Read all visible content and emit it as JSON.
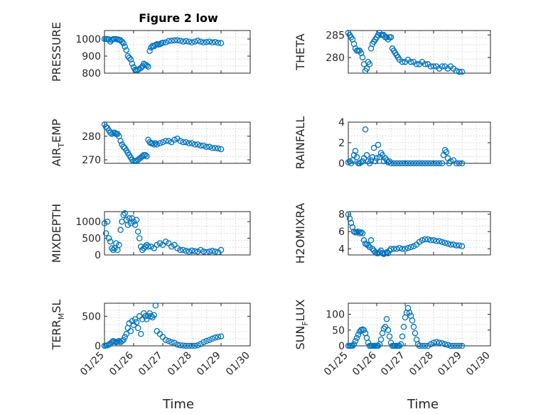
{
  "figure": {
    "title": "Figure 2 low",
    "xlabel": "Time",
    "x_ticks": [
      "01/25",
      "01/26",
      "01/27",
      "01/28",
      "01/29",
      "01/30"
    ]
  },
  "colors": {
    "marker": "#0072BD",
    "axes": "#262626",
    "grid": "#c8c8c8"
  },
  "chart_data": [
    {
      "type": "scatter",
      "name": "pressure",
      "ylabel": "PRESSURE",
      "ylabel_sub": "",
      "ylim": [
        800,
        1050
      ],
      "yticks": [
        800,
        900,
        1000
      ],
      "xlim": [
        0,
        4.8
      ],
      "x": [
        0,
        0.05,
        0.1,
        0.15,
        0.2,
        0.25,
        0.3,
        0.35,
        0.4,
        0.45,
        0.5,
        0.55,
        0.6,
        0.65,
        0.7,
        0.75,
        0.8,
        0.85,
        0.9,
        0.95,
        1.0,
        1.05,
        1.1,
        1.15,
        1.2,
        1.25,
        1.3,
        1.35,
        1.4,
        1.45,
        1.5,
        1.55,
        1.6,
        1.65,
        1.7,
        1.75,
        1.8,
        1.85,
        1.9,
        1.95,
        2.0,
        2.1,
        2.2,
        2.3,
        2.4,
        2.5,
        2.6,
        2.7,
        2.8,
        2.9,
        3.0,
        3.1,
        3.2,
        3.3,
        3.4,
        3.5,
        3.6,
        3.7,
        3.8,
        3.9,
        4.0
      ],
      "y": [
        1000,
        1000,
        1000,
        998,
        985,
        995,
        1000,
        1000,
        1000,
        998,
        996,
        993,
        985,
        975,
        955,
        935,
        900,
        890,
        880,
        855,
        835,
        820,
        818,
        820,
        825,
        830,
        840,
        855,
        850,
        845,
        838,
        930,
        950,
        960,
        958,
        965,
        970,
        968,
        970,
        975,
        978,
        980,
        988,
        990,
        992,
        993,
        990,
        985,
        988,
        985,
        980,
        985,
        990,
        985,
        980,
        982,
        985,
        980,
        982,
        978,
        976
      ]
    },
    {
      "type": "scatter",
      "name": "theta",
      "ylabel": "THETA",
      "ylabel_sub": "",
      "ylim": [
        276.5,
        286
      ],
      "yticks": [
        280,
        285
      ],
      "xlim": [
        0,
        4.8
      ],
      "x": [
        0,
        0.05,
        0.1,
        0.15,
        0.2,
        0.25,
        0.3,
        0.35,
        0.4,
        0.45,
        0.5,
        0.55,
        0.6,
        0.65,
        0.7,
        0.75,
        0.8,
        0.85,
        0.9,
        0.95,
        1.0,
        1.05,
        1.1,
        1.15,
        1.2,
        1.25,
        1.3,
        1.35,
        1.4,
        1.45,
        1.5,
        1.55,
        1.6,
        1.65,
        1.7,
        1.75,
        1.8,
        1.9,
        2.0,
        2.1,
        2.2,
        2.3,
        2.4,
        2.5,
        2.6,
        2.7,
        2.8,
        2.9,
        3.0,
        3.1,
        3.2,
        3.3,
        3.4,
        3.5,
        3.6,
        3.7,
        3.8,
        3.9,
        4.0
      ],
      "y": [
        285.5,
        285,
        284.5,
        284,
        283,
        282,
        281.5,
        281.5,
        281.5,
        281,
        280,
        278.5,
        277,
        277.5,
        279,
        278.5,
        282,
        283,
        283.5,
        284,
        284.5,
        285,
        285.5,
        285,
        285,
        285,
        284.5,
        284.5,
        284,
        284.5,
        284.5,
        282,
        281.5,
        281,
        280.5,
        280,
        279.5,
        279,
        279,
        279.5,
        279,
        279,
        278.5,
        278.5,
        279,
        278.5,
        278.5,
        278,
        278,
        278,
        277.5,
        278,
        278,
        277.5,
        278,
        277.5,
        277,
        276.8,
        276.8
      ]
    },
    {
      "type": "scatter",
      "name": "air_temp",
      "ylabel": "AIR",
      "ylabel_sub": "T",
      "ylabel_suffix": "EMP",
      "ylim": [
        268.5,
        286
      ],
      "yticks": [
        270,
        280
      ],
      "xlim": [
        0,
        4.8
      ],
      "x": [
        0,
        0.05,
        0.1,
        0.15,
        0.2,
        0.25,
        0.3,
        0.35,
        0.4,
        0.45,
        0.5,
        0.55,
        0.6,
        0.65,
        0.7,
        0.75,
        0.8,
        0.85,
        0.9,
        0.95,
        1.0,
        1.05,
        1.1,
        1.15,
        1.2,
        1.25,
        1.3,
        1.35,
        1.4,
        1.45,
        1.5,
        1.55,
        1.6,
        1.65,
        1.7,
        1.75,
        1.8,
        1.9,
        2.0,
        2.1,
        2.2,
        2.3,
        2.4,
        2.5,
        2.6,
        2.7,
        2.8,
        2.9,
        3.0,
        3.1,
        3.2,
        3.3,
        3.4,
        3.5,
        3.6,
        3.7,
        3.8,
        3.9,
        4.0
      ],
      "y": [
        285,
        284,
        283.5,
        282.5,
        281.5,
        281,
        281.5,
        281.5,
        281,
        281,
        280,
        278,
        276.5,
        275.5,
        275,
        274,
        273,
        272,
        271,
        270,
        269.5,
        269.5,
        269.5,
        270,
        270.5,
        271,
        271.5,
        272,
        272,
        271.5,
        278.5,
        277.5,
        277,
        277,
        276.5,
        277,
        276.5,
        277,
        277.5,
        278,
        278,
        277.5,
        278.5,
        279,
        278,
        277.5,
        277.5,
        277,
        277,
        276.5,
        276.5,
        276,
        276,
        275.5,
        275.5,
        275,
        275,
        274.8,
        274.5
      ]
    },
    {
      "type": "scatter",
      "name": "rainfall",
      "ylabel": "RAINFALL",
      "ylabel_sub": "",
      "ylim": [
        0,
        4
      ],
      "yticks": [
        0,
        2,
        4
      ],
      "xlim": [
        0,
        4.8
      ],
      "x": [
        0,
        0.05,
        0.1,
        0.15,
        0.2,
        0.25,
        0.3,
        0.35,
        0.4,
        0.45,
        0.5,
        0.55,
        0.6,
        0.65,
        0.7,
        0.75,
        0.8,
        0.85,
        0.9,
        0.95,
        1.0,
        1.05,
        1.1,
        1.15,
        1.2,
        1.25,
        1.3,
        1.35,
        1.4,
        1.45,
        1.5,
        1.6,
        1.7,
        1.8,
        1.9,
        2.0,
        2.1,
        2.2,
        2.3,
        2.4,
        2.5,
        2.6,
        2.7,
        2.8,
        2.9,
        3.0,
        3.1,
        3.2,
        3.3,
        3.35,
        3.4,
        3.45,
        3.5,
        3.55,
        3.6,
        3.7,
        3.8,
        3.9,
        4.0
      ],
      "y": [
        0.1,
        0.2,
        0,
        0.3,
        0.8,
        1.2,
        0.6,
        0,
        0,
        0.1,
        0.2,
        0.5,
        3.3,
        0.8,
        0.2,
        0,
        0.3,
        0.6,
        1.5,
        0.2,
        0.5,
        1.8,
        0.6,
        1,
        0.8,
        0.2,
        0.5,
        0.3,
        0.1,
        0.2,
        0,
        0,
        0,
        0,
        0,
        0,
        0,
        0,
        0,
        0,
        0,
        0,
        0,
        0,
        0,
        0,
        0,
        0,
        0,
        0.8,
        1.3,
        1.1,
        0.5,
        0,
        0.2,
        0.3,
        0,
        0,
        0
      ]
    },
    {
      "type": "scatter",
      "name": "mixdepth",
      "ylabel": "MIXDEPTH",
      "ylabel_sub": "",
      "ylim": [
        0,
        1300
      ],
      "yticks": [
        0,
        500,
        1000
      ],
      "xlim": [
        0,
        4.8
      ],
      "x": [
        0,
        0.05,
        0.1,
        0.15,
        0.2,
        0.25,
        0.3,
        0.35,
        0.4,
        0.45,
        0.5,
        0.55,
        0.6,
        0.65,
        0.7,
        0.75,
        0.8,
        0.85,
        0.9,
        0.95,
        1.0,
        1.05,
        1.1,
        1.15,
        1.2,
        1.25,
        1.3,
        1.35,
        1.4,
        1.45,
        1.5,
        1.6,
        1.7,
        1.8,
        1.9,
        2.0,
        2.1,
        2.2,
        2.3,
        2.4,
        2.5,
        2.6,
        2.7,
        2.8,
        2.9,
        3.0,
        3.1,
        3.2,
        3.3,
        3.4,
        3.5,
        3.6,
        3.7,
        3.8,
        3.9,
        4.0
      ],
      "y": [
        950,
        650,
        1000,
        500,
        400,
        200,
        150,
        200,
        350,
        150,
        300,
        750,
        1000,
        1200,
        1250,
        1050,
        900,
        1100,
        950,
        1100,
        1000,
        900,
        1050,
        700,
        500,
        250,
        150,
        200,
        250,
        300,
        250,
        250,
        200,
        300,
        350,
        300,
        400,
        350,
        250,
        300,
        200,
        150,
        150,
        120,
        100,
        130,
        110,
        100,
        150,
        100,
        80,
        100,
        120,
        100,
        80,
        150
      ]
    },
    {
      "type": "scatter",
      "name": "h2omixra",
      "ylabel": "H2OMIXRA",
      "ylabel_sub": "",
      "ylim": [
        3.3,
        8.3
      ],
      "yticks": [
        4,
        6,
        8
      ],
      "xlim": [
        0,
        4.8
      ],
      "x": [
        0,
        0.05,
        0.1,
        0.15,
        0.2,
        0.25,
        0.3,
        0.35,
        0.4,
        0.45,
        0.5,
        0.55,
        0.6,
        0.65,
        0.7,
        0.75,
        0.8,
        0.85,
        0.9,
        0.95,
        1.0,
        1.05,
        1.1,
        1.15,
        1.2,
        1.25,
        1.3,
        1.35,
        1.4,
        1.45,
        1.5,
        1.6,
        1.7,
        1.8,
        1.9,
        2.0,
        2.1,
        2.2,
        2.3,
        2.4,
        2.5,
        2.6,
        2.7,
        2.8,
        2.9,
        3.0,
        3.1,
        3.2,
        3.3,
        3.4,
        3.5,
        3.6,
        3.7,
        3.8,
        3.9,
        4.0
      ],
      "y": [
        8,
        7.5,
        7,
        6.5,
        6,
        5.9,
        5.9,
        6,
        5.8,
        5.9,
        5.8,
        5,
        4.6,
        4.5,
        4.4,
        4.2,
        5,
        4,
        3.8,
        3.6,
        3.5,
        3.5,
        3.6,
        3.8,
        3.5,
        3.4,
        3.5,
        3.6,
        3.5,
        3.8,
        4,
        4,
        4,
        4.1,
        4,
        4,
        4.1,
        4.2,
        4.3,
        4.5,
        4.8,
        5,
        5.1,
        5.1,
        5,
        5,
        4.9,
        4.9,
        4.8,
        4.7,
        4.6,
        4.5,
        4.5,
        4.4,
        4.4,
        4.3
      ]
    },
    {
      "type": "scatter",
      "name": "terr_msl",
      "ylabel": "TERR",
      "ylabel_sub": "M",
      "ylabel_suffix": "SL",
      "ylim": [
        0,
        720
      ],
      "yticks": [
        0,
        500
      ],
      "xlim": [
        0,
        5
      ],
      "x": [
        0,
        0.05,
        0.1,
        0.15,
        0.2,
        0.25,
        0.3,
        0.35,
        0.4,
        0.45,
        0.5,
        0.55,
        0.6,
        0.65,
        0.7,
        0.75,
        0.8,
        0.85,
        0.9,
        0.95,
        1.0,
        1.05,
        1.1,
        1.15,
        1.2,
        1.25,
        1.3,
        1.35,
        1.4,
        1.45,
        1.5,
        1.55,
        1.6,
        1.65,
        1.7,
        1.75,
        1.8,
        1.9,
        2.0,
        2.1,
        2.2,
        2.3,
        2.4,
        2.5,
        2.6,
        2.7,
        2.8,
        2.9,
        3.0,
        3.1,
        3.2,
        3.3,
        3.4,
        3.5,
        3.6,
        3.7,
        3.8,
        3.9,
        4.0
      ],
      "y": [
        0,
        5,
        10,
        20,
        40,
        60,
        80,
        70,
        60,
        70,
        80,
        60,
        80,
        100,
        150,
        200,
        300,
        380,
        250,
        420,
        350,
        450,
        400,
        300,
        500,
        200,
        450,
        550,
        500,
        450,
        500,
        550,
        500,
        480,
        520,
        680,
        250,
        200,
        150,
        100,
        80,
        60,
        50,
        20,
        10,
        5,
        0,
        0,
        0,
        0,
        10,
        30,
        60,
        80,
        100,
        120,
        140,
        150,
        160
      ]
    },
    {
      "type": "scatter",
      "name": "sun_flux",
      "ylabel": "SUN",
      "ylabel_sub": "F",
      "ylabel_suffix": "LUX",
      "ylim": [
        0,
        135
      ],
      "yticks": [
        0,
        50,
        100
      ],
      "xlim": [
        0,
        5
      ],
      "x": [
        0,
        0.05,
        0.1,
        0.15,
        0.2,
        0.25,
        0.3,
        0.35,
        0.4,
        0.45,
        0.5,
        0.55,
        0.6,
        0.65,
        0.7,
        0.75,
        0.8,
        0.85,
        0.9,
        0.95,
        1.0,
        1.05,
        1.1,
        1.15,
        1.2,
        1.25,
        1.3,
        1.35,
        1.4,
        1.45,
        1.5,
        1.55,
        1.6,
        1.65,
        1.7,
        1.75,
        1.8,
        1.85,
        1.9,
        1.95,
        2.0,
        2.05,
        2.1,
        2.15,
        2.2,
        2.25,
        2.3,
        2.35,
        2.4,
        2.45,
        2.5,
        2.6,
        2.7,
        2.8,
        2.9,
        3.0,
        3.1,
        3.2,
        3.3,
        3.4,
        3.5,
        3.6,
        3.7,
        3.8,
        3.9,
        4.0
      ],
      "y": [
        0,
        0,
        0,
        0,
        5,
        15,
        25,
        35,
        45,
        50,
        52,
        50,
        40,
        25,
        10,
        0,
        0,
        0,
        0,
        0,
        0,
        0,
        5,
        20,
        40,
        55,
        60,
        85,
        50,
        30,
        10,
        0,
        0,
        0,
        0,
        0,
        0,
        5,
        30,
        60,
        90,
        105,
        120,
        105,
        95,
        80,
        60,
        40,
        20,
        5,
        0,
        0,
        0,
        0,
        5,
        10,
        12,
        10,
        8,
        5,
        3,
        0,
        0,
        0,
        0,
        0
      ]
    }
  ]
}
